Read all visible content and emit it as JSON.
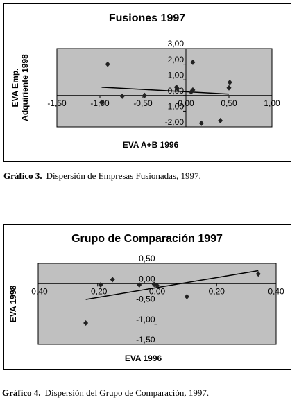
{
  "chart_data": [
    {
      "type": "scatter",
      "title": "Fusiones 1997",
      "xlabel": "EVA A+B 1996",
      "ylabel": [
        "EVA Emp.",
        "Adquiriente 1998"
      ],
      "x": [
        -0.91,
        -0.98,
        -0.74,
        -0.48,
        -0.11,
        -0.1,
        0.08,
        0.08,
        0.06,
        0.18,
        0.4,
        0.51,
        0.5
      ],
      "values": [
        2.0,
        -0.44,
        -0.05,
        0.0,
        0.53,
        0.44,
        2.12,
        0.35,
        0.22,
        -1.77,
        -1.6,
        0.84,
        0.49
      ],
      "color": "#222222",
      "trend": {
        "x": [
          -0.98,
          0.5
        ],
        "values": [
          0.53,
          0.09
        ]
      },
      "xlim": [
        -1.5,
        1.0
      ],
      "ylim": [
        -2.0,
        3.0
      ],
      "xticks": [
        {
          "value": -1.5,
          "label": "-1,50"
        },
        {
          "value": -1.0,
          "label": "-1,00"
        },
        {
          "value": -0.5,
          "label": "-0,50"
        },
        {
          "value": 0,
          "label": "0,00"
        },
        {
          "value": 0.5,
          "label": "0,50"
        },
        {
          "value": 1.0,
          "label": "1,00"
        }
      ],
      "yticks": [
        {
          "value": -2,
          "label": "-2,00"
        },
        {
          "value": -1,
          "label": "-1,00"
        },
        {
          "value": 0,
          "label": "0,00"
        },
        {
          "value": 1,
          "label": "1,00"
        },
        {
          "value": 2,
          "label": "2,00"
        },
        {
          "value": 3,
          "label": "3,00"
        }
      ],
      "caption": {
        "label": "Gráfico 3.",
        "text": "Dispersión de Empresas Fusionadas, 1997."
      }
    },
    {
      "type": "scatter",
      "title": "Grupo de Comparación 1997",
      "xlabel": "EVA 1996",
      "ylabel": [
        "EVA 1998"
      ],
      "x": [
        -0.24,
        -0.19,
        -0.15,
        -0.06,
        0.0,
        0.1,
        0.34,
        -0.01
      ],
      "values": [
        -0.97,
        -0.03,
        0.1,
        -0.03,
        -0.05,
        -0.32,
        0.24,
        -0.02
      ],
      "color": "#222222",
      "trend": {
        "x": [
          -0.24,
          0.34
        ],
        "values": [
          -0.39,
          0.32
        ]
      },
      "xlim": [
        -0.4,
        0.4
      ],
      "ylim": [
        -1.5,
        0.5
      ],
      "xticks": [
        {
          "value": -0.4,
          "label": "-0,40"
        },
        {
          "value": -0.2,
          "label": "-0,20"
        },
        {
          "value": 0,
          "label": "0,00"
        },
        {
          "value": 0.2,
          "label": "0,20"
        },
        {
          "value": 0.4,
          "label": "0,40"
        }
      ],
      "yticks": [
        {
          "value": -1.5,
          "label": "-1,50"
        },
        {
          "value": -1.0,
          "label": "-1,00"
        },
        {
          "value": -0.5,
          "label": "-0,50"
        },
        {
          "value": 0,
          "label": "0,00"
        },
        {
          "value": 0.5,
          "label": "0,50"
        }
      ],
      "caption": {
        "label": "Gráfico 4.",
        "text": "Dispersión del Grupo de Comparación, 1997."
      }
    }
  ]
}
